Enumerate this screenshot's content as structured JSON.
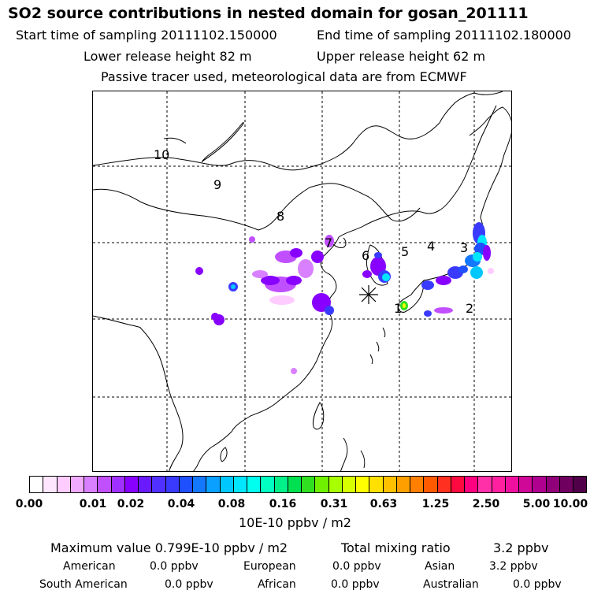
{
  "header": {
    "title": "SO2 source contributions in nested domain for gosan_201111",
    "start_time": "Start time of sampling 20111102.150000",
    "end_time": "End time of sampling 20111102.180000",
    "lower_height": "Lower release height   82 m",
    "upper_height": "Upper release height   62 m",
    "tracer_note": "Passive tracer used, meteorological data are from ECMWF"
  },
  "map": {
    "region_labels": [
      "1",
      "2",
      "3",
      "4",
      "5",
      "6",
      "7",
      "8",
      "9",
      "10"
    ],
    "receptor_icon": "asterisk-receptor-icon"
  },
  "legend": {
    "ticks": [
      "0.00",
      "0.01",
      "0.02",
      "0.04",
      "0.08",
      "0.16",
      "0.31",
      "0.63",
      "1.25",
      "2.50",
      "5.00",
      "10.00"
    ],
    "colors": [
      "#ffffff",
      "#ffe6ff",
      "#ffccff",
      "#f0aaff",
      "#d880ff",
      "#c050ff",
      "#a030ff",
      "#8800ff",
      "#6a1aff",
      "#5030ff",
      "#3a3aff",
      "#1e50ff",
      "#1478ff",
      "#0aa0ff",
      "#00c8ff",
      "#00e6ff",
      "#00ffee",
      "#00ffc0",
      "#00f08a",
      "#00e050",
      "#30e020",
      "#70f000",
      "#a8ff00",
      "#d8ff00",
      "#ffff00",
      "#ffe000",
      "#ffc000",
      "#ffa000",
      "#ff8000",
      "#ff5a00",
      "#ff3020",
      "#ff0a40",
      "#ff0080",
      "#ff30a8",
      "#ff20a0",
      "#f010a0",
      "#d00898",
      "#b00090",
      "#900078",
      "#700060",
      "#500048"
    ],
    "units": "10E-10 ppbv / m2"
  },
  "stats": {
    "max_label": "Maximum value  0.799E-10 ppbv / m2",
    "total_label": "Total mixing ratio",
    "total_value": "3.2 ppbv",
    "american_label": "American",
    "american_value": "0.0 ppbv",
    "european_label": "European",
    "european_value": "0.0 ppbv",
    "asian_label": "Asian",
    "asian_value": "3.2 ppbv",
    "south_american_label": "South American",
    "south_american_value": "0.0 ppbv",
    "african_label": "African",
    "african_value": "0.0 ppbv",
    "australian_label": "Australian",
    "australian_value": "0.0 ppbv"
  }
}
